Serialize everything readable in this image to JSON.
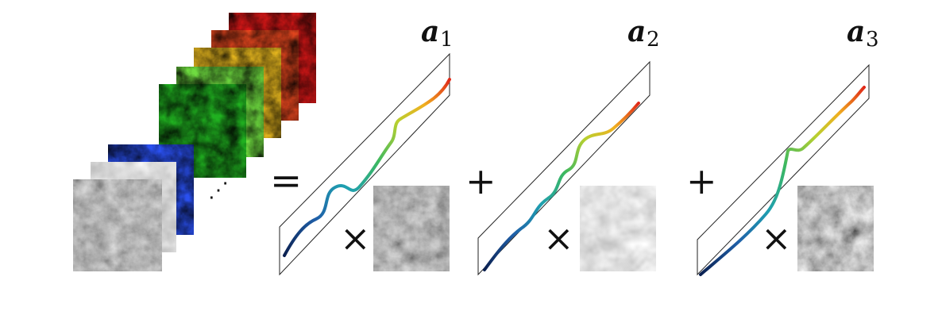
{
  "equals_symbol": "=",
  "plus_symbol": "+",
  "times_symbol": "×",
  "ellipsis": "⋰",
  "band_stack": {
    "band_colors": [
      "#e01818",
      "#f04a20",
      "#f2c020",
      "#6fdc40",
      "#20b020",
      "#2a50f0",
      "#c8c8c8",
      "#1a1a1a"
    ]
  },
  "endmembers": [
    {
      "label_base": "a",
      "label_sub": "1",
      "abundance_tone": "dark"
    },
    {
      "label_base": "a",
      "label_sub": "2",
      "abundance_tone": "light"
    },
    {
      "label_base": "a",
      "label_sub": "3",
      "abundance_tone": "mid"
    }
  ],
  "spectrum_colors": [
    "#0b2050",
    "#1f5fa8",
    "#1fa0b0",
    "#3cb860",
    "#b8d030",
    "#f0b020",
    "#e02818"
  ]
}
